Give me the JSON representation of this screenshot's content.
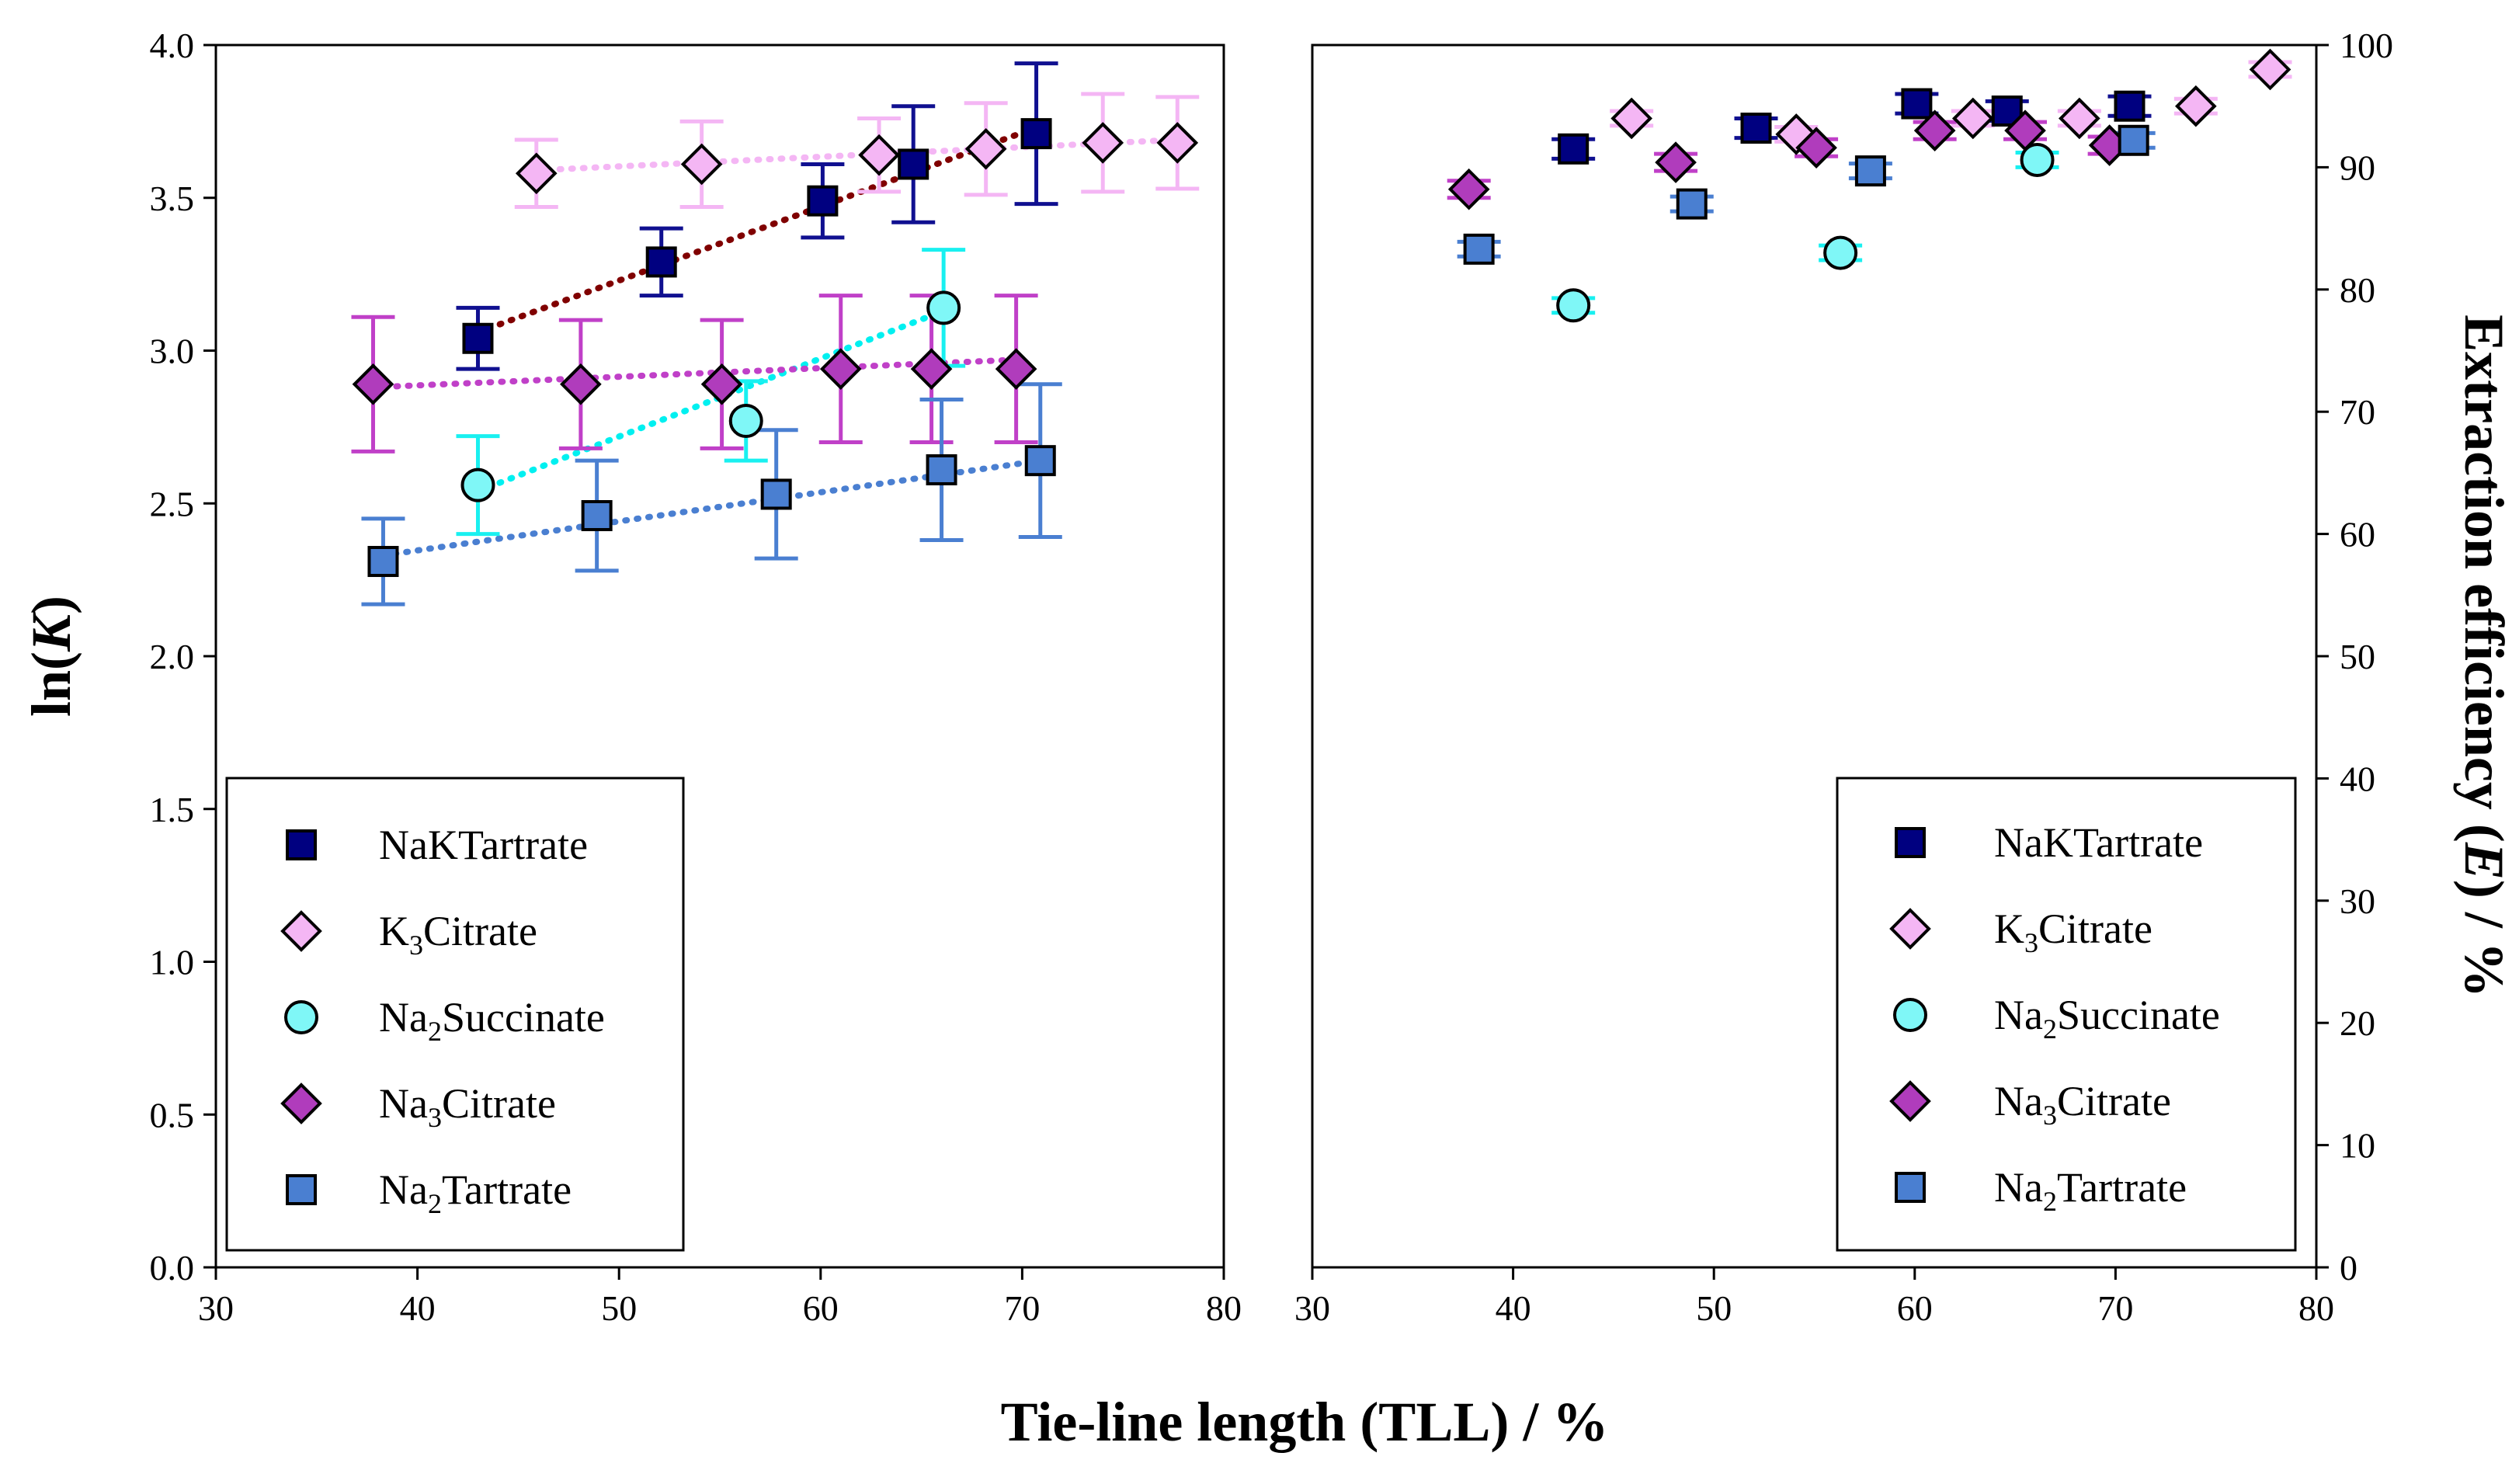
{
  "x_title": "Tie-line length (TLL) / %",
  "colors": {
    "NaKTartrate": "#000080",
    "K3Citrate": "#f4b6f4",
    "Na2Succinate": "#7ff7f7",
    "Na3Citrate": "#b03cbc",
    "Na2Tartrate": "#4a7fd1",
    "fit_NaKTartrate": "#800000",
    "fit_K3Citrate": "#f4b6f4",
    "fit_Na2Succinate": "#00f0f0",
    "fit_Na3Citrate": "#c040c8",
    "fit_Na2Tartrate": "#4a7fd1",
    "err_NaKTartrate": "#101090",
    "err_K3Citrate": "#f4b6f4",
    "err_Na2Succinate": "#19f0f0",
    "err_Na3Citrate": "#c040c8",
    "err_Na2Tartrate": "#4a7fd1"
  },
  "chart_data": [
    {
      "type": "scatter",
      "panel": "left",
      "ylabel": "ln(K)",
      "ylabel_plain": "ln(",
      "ylabel_italic": "K",
      "ylabel_tail": ")",
      "xlim": [
        30,
        80
      ],
      "ylim": [
        0,
        4
      ],
      "x_ticks": [
        "30",
        "40",
        "50",
        "60",
        "70",
        "80"
      ],
      "y_ticks": [
        "0.0",
        "0.5",
        "1.0",
        "1.5",
        "2.0",
        "2.5",
        "3.0",
        "3.5",
        "4.0"
      ],
      "legend": {
        "position": "bottom-left",
        "entries": [
          {
            "key": "NaKTartrate",
            "marker": "square",
            "pre": "NaKTartrate",
            "sub": "",
            "post": ""
          },
          {
            "key": "K3Citrate",
            "marker": "diamond",
            "pre": "K",
            "sub": "3",
            "post": "Citrate"
          },
          {
            "key": "Na2Succinate",
            "marker": "circle",
            "pre": "Na",
            "sub": "2",
            "post": "Succinate"
          },
          {
            "key": "Na3Citrate",
            "marker": "diamond",
            "pre": "Na",
            "sub": "3",
            "post": "Citrate"
          },
          {
            "key": "Na2Tartrate",
            "marker": "square",
            "pre": "Na",
            "sub": "2",
            "post": "Tartrate"
          }
        ]
      },
      "series": [
        {
          "key": "NaKTartrate",
          "marker": "square",
          "x": [
            43.0,
            52.1,
            60.1,
            64.6,
            70.7
          ],
          "y": [
            3.04,
            3.29,
            3.49,
            3.61,
            3.71
          ],
          "err": [
            0.1,
            0.11,
            0.12,
            0.19,
            0.23
          ],
          "fit": {
            "x1": 43.0,
            "y1": 3.06,
            "x2": 70.7,
            "y2": 3.73
          }
        },
        {
          "key": "K3Citrate",
          "marker": "diamond",
          "x": [
            45.9,
            54.1,
            62.9,
            68.2,
            74.0,
            77.7
          ],
          "y": [
            3.58,
            3.61,
            3.64,
            3.66,
            3.68,
            3.68
          ],
          "err": [
            0.11,
            0.14,
            0.12,
            0.15,
            0.16,
            0.15
          ],
          "fit": {
            "x1": 45.9,
            "y1": 3.59,
            "x2": 77.7,
            "y2": 3.69
          }
        },
        {
          "key": "Na2Succinate",
          "marker": "circle",
          "x": [
            43.0,
            56.3,
            66.1
          ],
          "y": [
            2.56,
            2.77,
            3.14
          ],
          "err": [
            0.16,
            0.13,
            0.19
          ],
          "fit": {
            "x1": 43.0,
            "y1": 2.54,
            "x2": 66.1,
            "y2": 3.13
          }
        },
        {
          "key": "Na3Citrate",
          "marker": "diamond",
          "x": [
            37.8,
            48.1,
            55.1,
            61.0,
            65.5,
            69.7
          ],
          "y": [
            2.89,
            2.89,
            2.89,
            2.94,
            2.94,
            2.94
          ],
          "err": [
            0.22,
            0.21,
            0.21,
            0.24,
            0.24,
            0.24
          ],
          "fit": {
            "x1": 37.8,
            "y1": 2.88,
            "x2": 69.7,
            "y2": 2.97
          }
        },
        {
          "key": "Na2Tartrate",
          "marker": "square",
          "x": [
            38.3,
            48.9,
            57.8,
            66.0,
            70.9
          ],
          "y": [
            2.31,
            2.46,
            2.53,
            2.61,
            2.64
          ],
          "err": [
            0.14,
            0.18,
            0.21,
            0.23,
            0.25
          ],
          "fit": {
            "x1": 38.3,
            "y1": 2.33,
            "x2": 70.9,
            "y2": 2.64
          }
        }
      ]
    },
    {
      "type": "scatter",
      "panel": "right",
      "ylabel": "Extraction efficiency (E) / %",
      "ylabel_plain": "Extraction efficiency (",
      "ylabel_italic": "E",
      "ylabel_tail": ") / %",
      "xlim": [
        30,
        80
      ],
      "ylim": [
        0,
        100
      ],
      "x_ticks": [
        "30",
        "40",
        "50",
        "60",
        "70",
        "80"
      ],
      "y_ticks": [
        "0",
        "10",
        "20",
        "30",
        "40",
        "50",
        "60",
        "70",
        "80",
        "90",
        "100"
      ],
      "legend": {
        "position": "bottom-right",
        "entries": [
          {
            "key": "NaKTartrate",
            "marker": "square",
            "pre": "NaKTartrate",
            "sub": "",
            "post": ""
          },
          {
            "key": "K3Citrate",
            "marker": "diamond",
            "pre": "K",
            "sub": "3",
            "post": "Citrate"
          },
          {
            "key": "Na2Succinate",
            "marker": "circle",
            "pre": "Na",
            "sub": "2",
            "post": "Succinate"
          },
          {
            "key": "Na3Citrate",
            "marker": "diamond",
            "pre": "Na",
            "sub": "3",
            "post": "Citrate"
          },
          {
            "key": "Na2Tartrate",
            "marker": "square",
            "pre": "Na",
            "sub": "2",
            "post": "Tartrate"
          }
        ]
      },
      "series": [
        {
          "key": "NaKTartrate",
          "marker": "square",
          "x": [
            43.0,
            52.1,
            60.1,
            64.6,
            70.7
          ],
          "y": [
            91.5,
            93.2,
            95.2,
            94.6,
            95.0
          ],
          "err": [
            0.8,
            0.8,
            0.8,
            0.8,
            0.8
          ]
        },
        {
          "key": "K3Citrate",
          "marker": "diamond",
          "x": [
            45.9,
            54.1,
            62.9,
            68.2,
            74.0,
            77.7
          ],
          "y": [
            94.0,
            92.7,
            94.0,
            94.0,
            95.0,
            98.0
          ],
          "err": [
            0.6,
            0.6,
            0.6,
            0.6,
            0.6,
            0.6
          ]
        },
        {
          "key": "Na2Succinate",
          "marker": "circle",
          "x": [
            43.0,
            56.3,
            66.1
          ],
          "y": [
            78.7,
            83.0,
            90.6
          ],
          "err": [
            0.6,
            0.6,
            0.6
          ]
        },
        {
          "key": "Na3Citrate",
          "marker": "diamond",
          "x": [
            37.8,
            48.1,
            55.1,
            61.0,
            65.5,
            69.7
          ],
          "y": [
            88.2,
            90.4,
            91.6,
            93.0,
            93.0,
            91.8
          ],
          "err": [
            0.7,
            0.7,
            0.7,
            0.7,
            0.7,
            0.7
          ]
        },
        {
          "key": "Na2Tartrate",
          "marker": "square",
          "x": [
            38.3,
            48.9,
            57.8,
            70.9
          ],
          "y": [
            83.3,
            87.0,
            89.7,
            92.2
          ],
          "err": [
            0.6,
            0.6,
            0.6,
            0.6
          ]
        }
      ]
    }
  ]
}
